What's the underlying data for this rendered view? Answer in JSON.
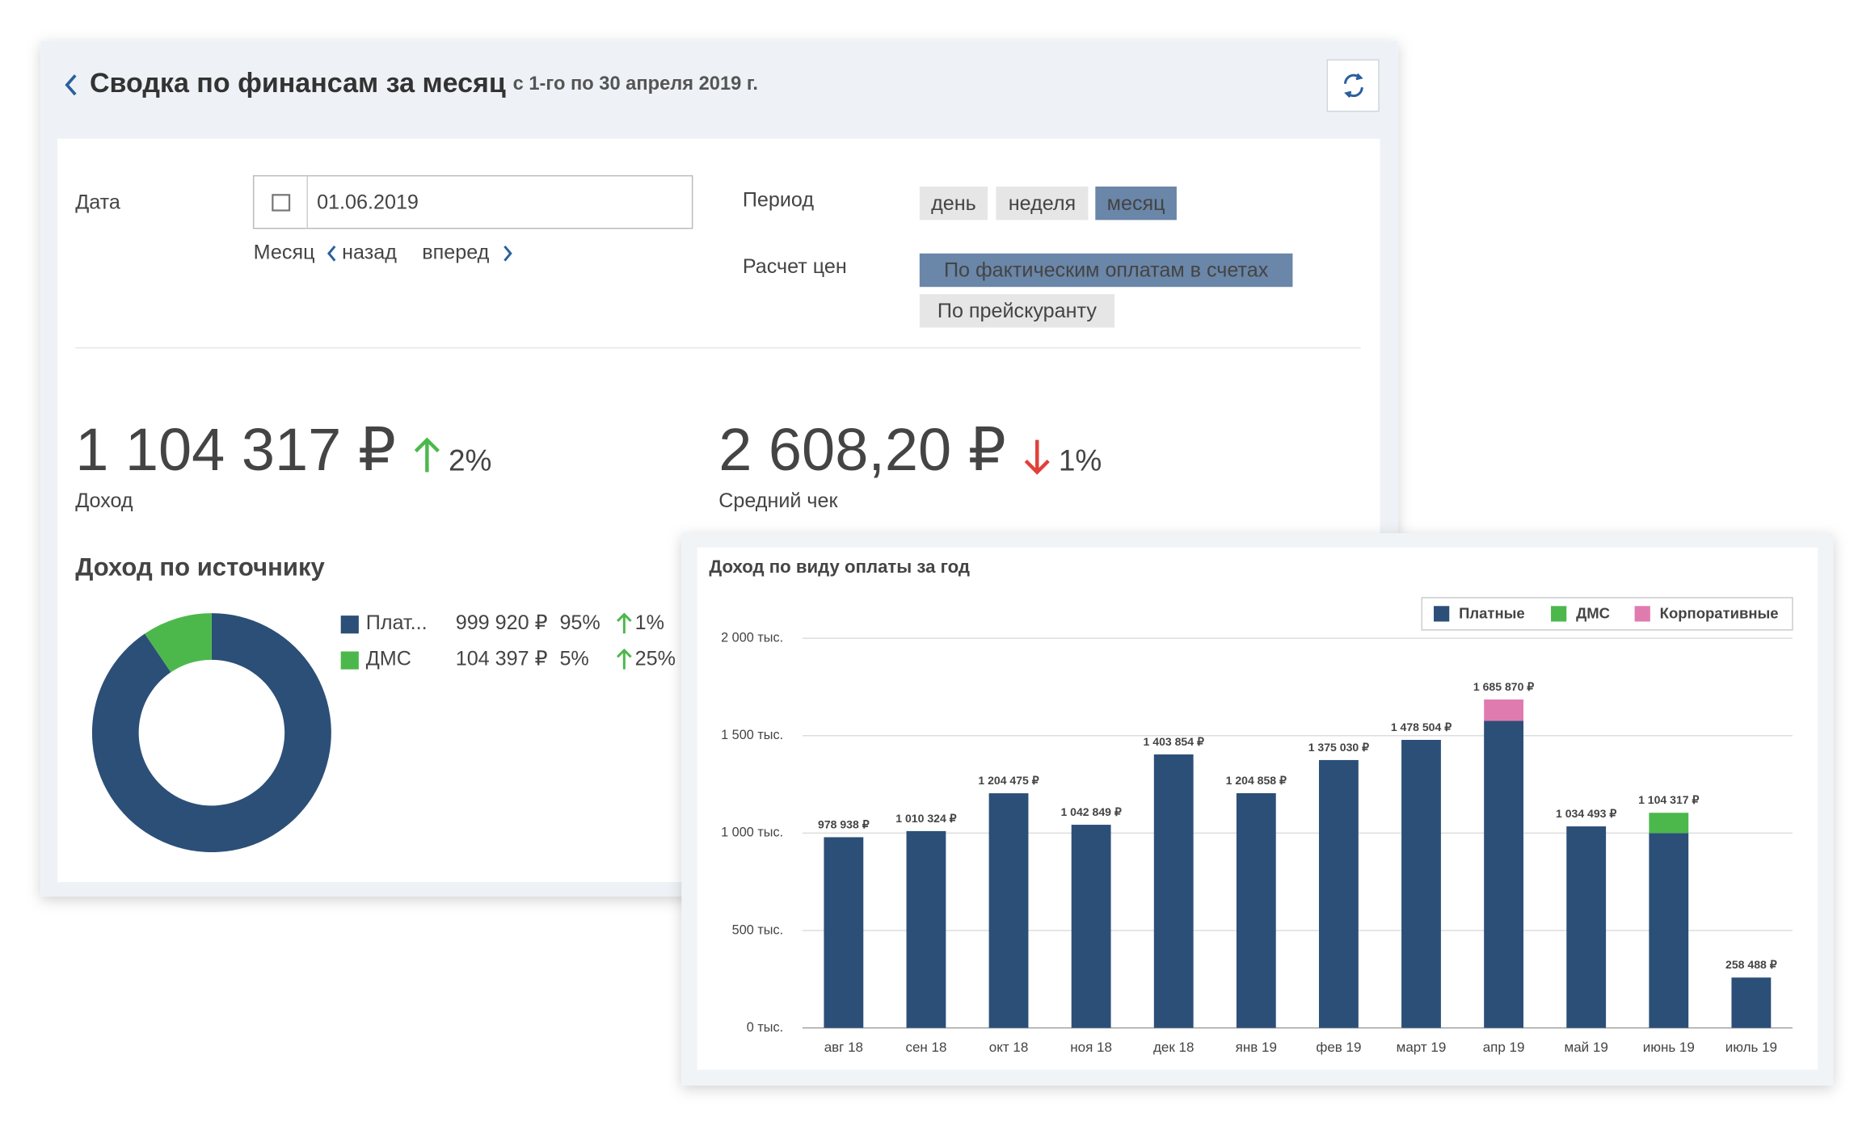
{
  "header": {
    "title": "Сводка по финансам за месяц",
    "subtitle": "с 1-го по 30 апреля 2019 г."
  },
  "filters": {
    "date_label": "Дата",
    "date_value": "01.06.2019",
    "month_label": "Месяц",
    "back": "назад",
    "forward": "вперед",
    "period_label": "Период",
    "periods": [
      "день",
      "неделя",
      "месяц"
    ],
    "active_period": 2,
    "pricing_label": "Расчет цен",
    "pricing": [
      "По фактическим оплатам в счетах",
      "По прейскуранту"
    ],
    "active_pricing": 0
  },
  "kpis": [
    {
      "value": "1 104 317 ₽",
      "change": "2%",
      "direction": "up",
      "label": "Доход"
    },
    {
      "value": "2 608,20 ₽",
      "change": "1%",
      "direction": "down",
      "label": "Средний чек"
    }
  ],
  "chart_data": [
    {
      "type": "pie",
      "title": "Доход по источнику",
      "donut": true,
      "categories": [
        "Плат...",
        "ДМС"
      ],
      "values": [
        999920,
        104397
      ],
      "value_labels": [
        "999 920 ₽",
        "104 397 ₽"
      ],
      "percent_labels": [
        "95%",
        "5%"
      ],
      "change_labels": [
        "1%",
        "25%"
      ],
      "colors": [
        "#2c4f78",
        "#4cb84c"
      ]
    },
    {
      "type": "bar",
      "stacked": true,
      "title": "Доход по виду оплаты за год",
      "categories": [
        "авг 18",
        "сен 18",
        "окт 18",
        "ноя 18",
        "дек 18",
        "янв 19",
        "фев 19",
        "март 19",
        "апр 19",
        "май 19",
        "июнь 19",
        "июль 19"
      ],
      "series": [
        {
          "name": "Платные",
          "color": "#2c4f78",
          "values": [
            978938,
            1010324,
            1204475,
            1042849,
            1403854,
            1204858,
            1375030,
            1478504,
            1575870,
            1034493,
            999920,
            258488
          ]
        },
        {
          "name": "ДМС",
          "color": "#4cb84c",
          "values": [
            0,
            0,
            0,
            0,
            0,
            0,
            0,
            0,
            0,
            0,
            104397,
            0
          ]
        },
        {
          "name": "Корпоративные",
          "color": "#e07bb0",
          "values": [
            0,
            0,
            0,
            0,
            0,
            0,
            0,
            0,
            110000,
            0,
            0,
            0
          ]
        }
      ],
      "total_labels": [
        "978 938 ₽",
        "1 010 324 ₽",
        "1 204 475 ₽",
        "1 042 849 ₽",
        "1 403 854 ₽",
        "1 204 858 ₽",
        "1 375 030 ₽",
        "1 478 504 ₽",
        "1 685 870 ₽",
        "1 034 493 ₽",
        "1 104 317 ₽",
        "258 488 ₽"
      ],
      "ylim": [
        0,
        2000000
      ],
      "yticks": [
        {
          "value": 0,
          "label": "0 тыс."
        },
        {
          "value": 500000,
          "label": "500 тыс."
        },
        {
          "value": 1000000,
          "label": "1 000 тыс."
        },
        {
          "value": 1500000,
          "label": "1 500 тыс."
        },
        {
          "value": 2000000,
          "label": "2 000 тыс."
        }
      ],
      "grid": true,
      "legend": "top-right"
    }
  ]
}
